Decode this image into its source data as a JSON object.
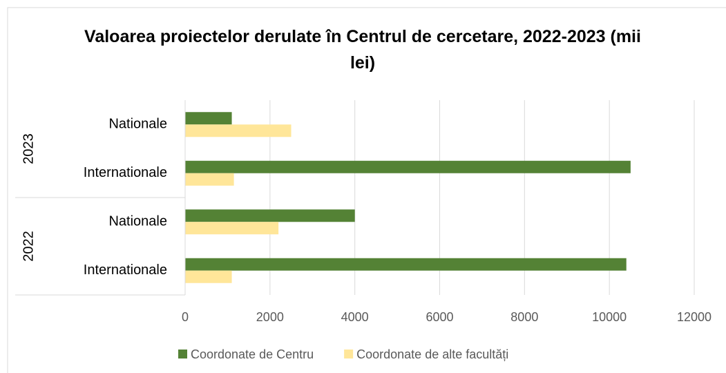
{
  "chart_data": {
    "type": "bar",
    "orientation": "horizontal",
    "title": "Valoarea proiectelor derulate în Centrul de cercetare, 2022-2023 (mii lei)",
    "category_groups": [
      {
        "name": "2023",
        "categories": [
          "Nationale",
          "Internationale"
        ]
      },
      {
        "name": "2022",
        "categories": [
          "Nationale",
          "Internationale"
        ]
      }
    ],
    "series": [
      {
        "name": "Coordonate de Centru",
        "color": "#548235",
        "values": [
          1100,
          10500,
          4000,
          10400
        ]
      },
      {
        "name": "Coordonate de alte facultăți",
        "color": "#ffe699",
        "values": [
          2500,
          1150,
          2200,
          1100
        ]
      }
    ],
    "xlim": [
      0,
      12000
    ],
    "xticks": [
      0,
      2000,
      4000,
      6000,
      8000,
      10000,
      12000
    ],
    "grid": true,
    "legend": "bottom"
  }
}
